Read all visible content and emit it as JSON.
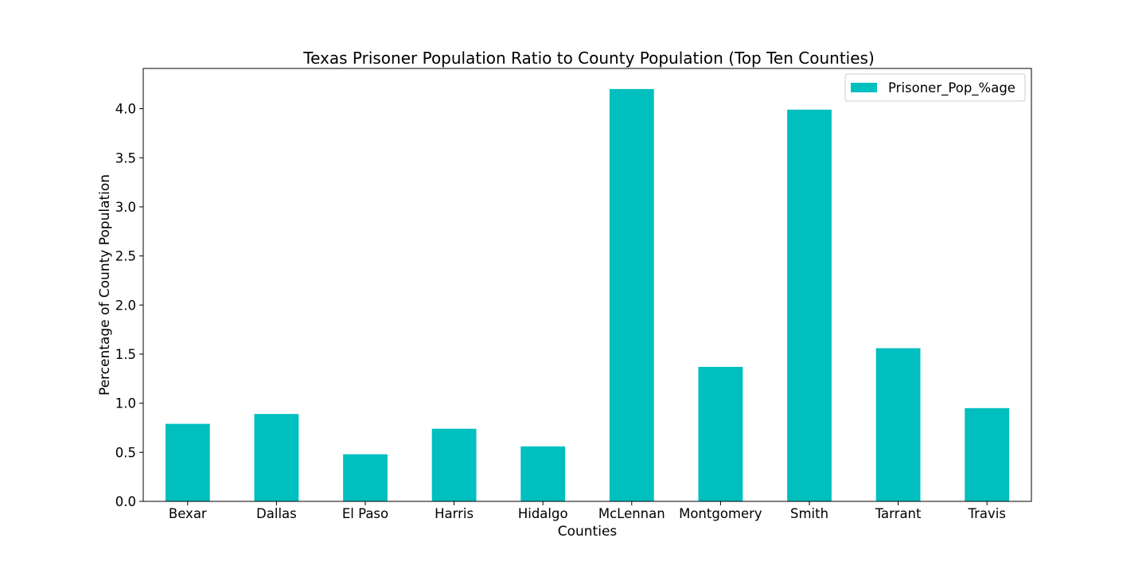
{
  "chart_data": {
    "type": "bar",
    "title": "Texas Prisoner Population Ratio to County Population (Top Ten Counties)",
    "xlabel": "Counties",
    "ylabel": "Percentage of County Population",
    "categories": [
      "Bexar",
      "Dallas",
      "El Paso",
      "Harris",
      "Hidalgo",
      "McLennan",
      "Montgomery",
      "Smith",
      "Tarrant",
      "Travis"
    ],
    "series": [
      {
        "name": "Prisoner_Pop_%age",
        "values": [
          0.79,
          0.89,
          0.48,
          0.74,
          0.56,
          4.2,
          1.37,
          3.99,
          1.56,
          0.95
        ],
        "color": "#00bfbf"
      }
    ],
    "ylim": [
      0,
      4.41
    ],
    "yticks": [
      0.0,
      0.5,
      1.0,
      1.5,
      2.0,
      2.5,
      3.0,
      3.5,
      4.0
    ],
    "ytick_labels": [
      "0.0",
      "0.5",
      "1.0",
      "1.5",
      "2.0",
      "2.5",
      "3.0",
      "3.5",
      "4.0"
    ],
    "grid": false,
    "legend_position": "top-right"
  }
}
